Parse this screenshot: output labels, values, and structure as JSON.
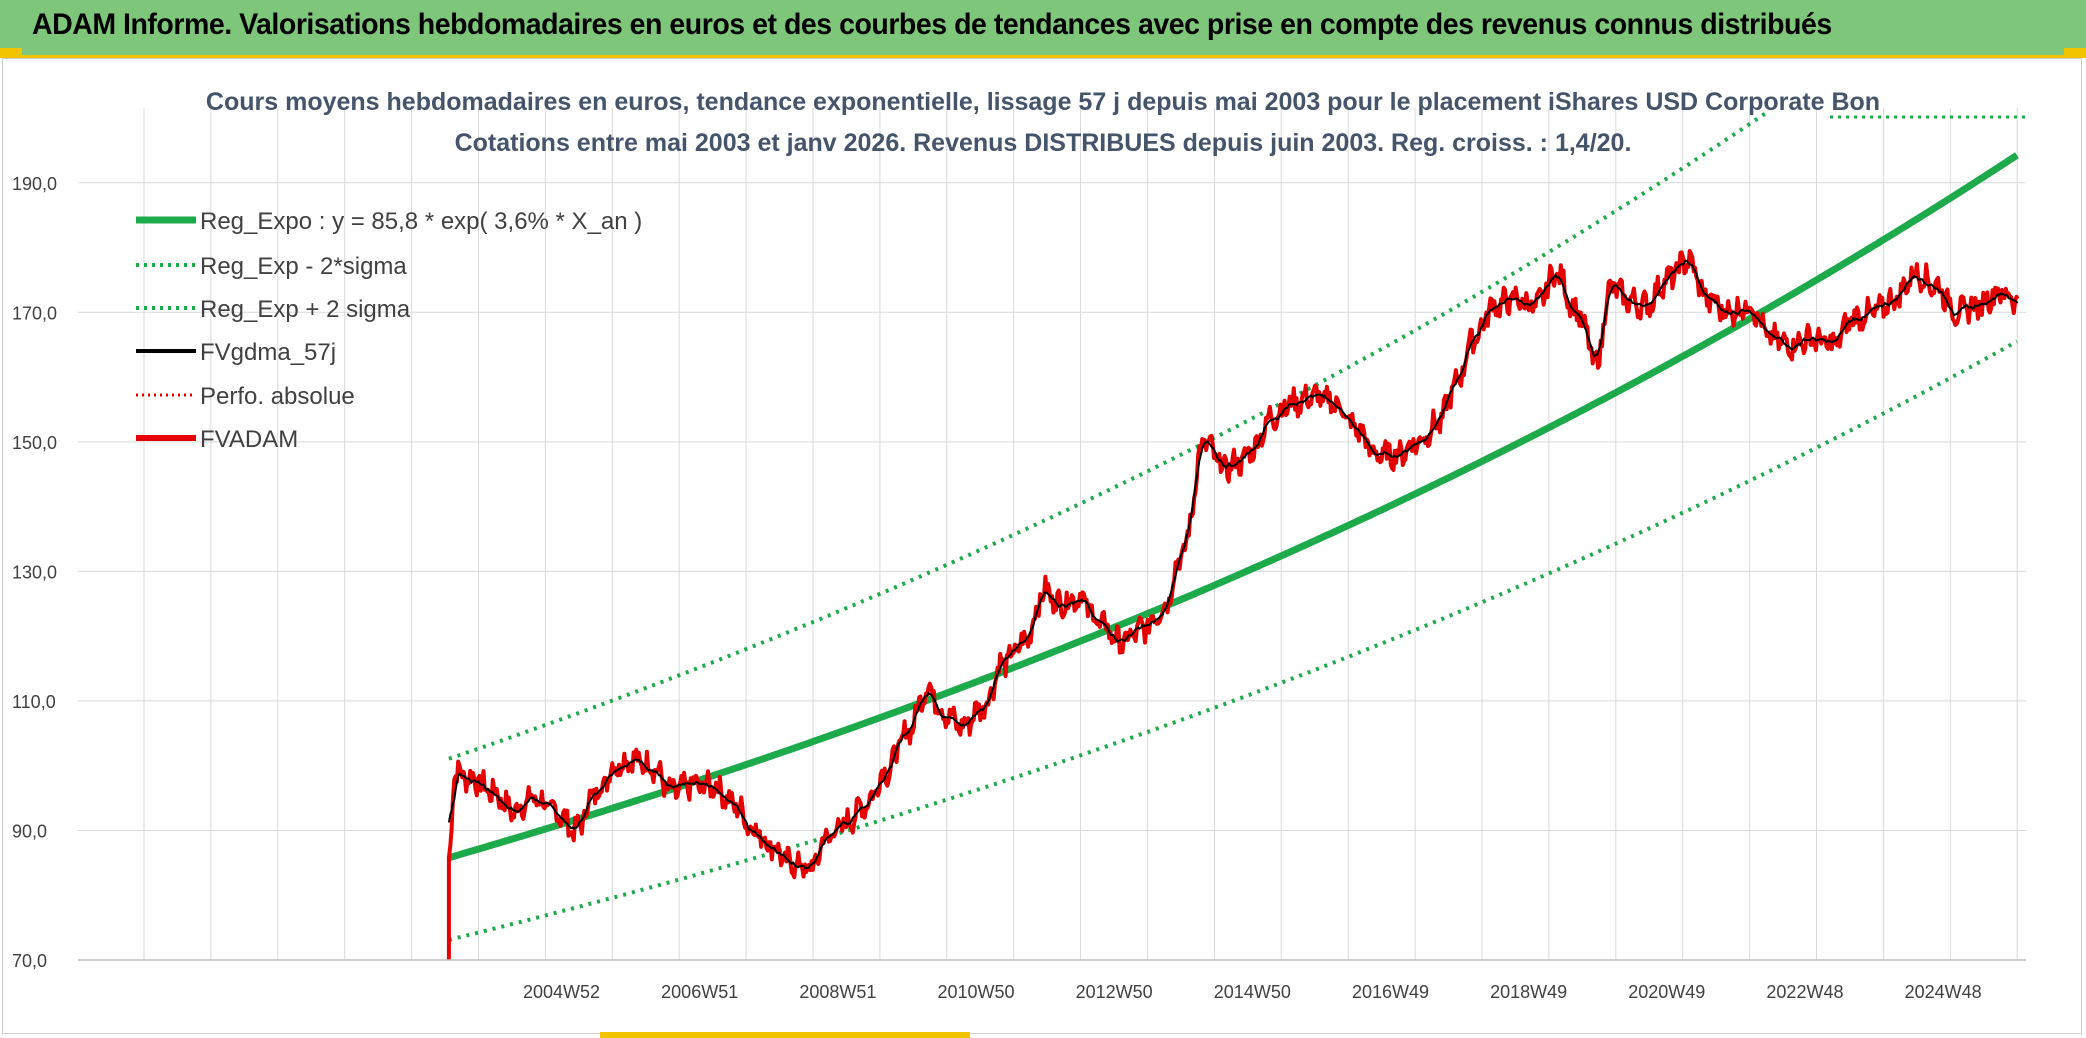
{
  "header": {
    "title": "ADAM Informe. Valorisations hebdomadaires en euros et des courbes de tendances avec prise en compte des revenus connus distribués"
  },
  "colors": {
    "header_bg": "#7dc67a",
    "accent_yellow": "#f2c400",
    "trend_green": "#1daa4a",
    "price_red": "#e60000",
    "smooth_black": "#000000",
    "grid": "#d9d9d9"
  },
  "chart_data": {
    "type": "line",
    "title": [
      "Cours moyens hebdomadaires en euros, tendance exponentielle, lissage 57 j depuis mai 2003 pour le placement iShares USD Corporate Bon",
      "Cotations entre mai 2003 et janv 2026. Revenus DISTRIBUES depuis juin 2003. Reg. croiss. : 1,4/20."
    ],
    "xlabel": "",
    "ylabel": "",
    "x_range": [
      1998.0,
      2026.2
    ],
    "ylim": [
      70,
      200
    ],
    "y_ticks": [
      70,
      90,
      110,
      130,
      150,
      170,
      190
    ],
    "y_tick_labels": [
      "70,0",
      "90,0",
      "110,0",
      "130,0",
      "150,0",
      "170,0",
      "190,0"
    ],
    "x_ticks": [
      2005.0,
      2007.0,
      2009.0,
      2011.0,
      2013.0,
      2015.0,
      2017.0,
      2019.0,
      2021.0,
      2023.0,
      2025.0
    ],
    "x_tick_labels": [
      "2004W52",
      "2006W51",
      "2008W51",
      "2010W50",
      "2012W50",
      "2014W50",
      "2016W49",
      "2018W49",
      "2020W49",
      "2022W48",
      "2024W48"
    ],
    "grid": true,
    "legend_position": "top-left",
    "regression": {
      "start_year": 2003.37,
      "end_year": 2026.1,
      "a": 85.8,
      "rate": 0.036,
      "sigma_factor_low": 0.852,
      "sigma_factor_high": 1.178
    },
    "price_anchors": {
      "x": [
        2003.37,
        2003.45,
        2003.7,
        2004.0,
        2004.3,
        2004.6,
        2004.9,
        2005.2,
        2005.5,
        2005.8,
        2006.0,
        2006.3,
        2006.6,
        2006.9,
        2007.2,
        2007.5,
        2007.8,
        2008.0,
        2008.3,
        2008.6,
        2008.85,
        2009.1,
        2009.4,
        2009.7,
        2010.0,
        2010.3,
        2010.55,
        2010.8,
        2011.1,
        2011.4,
        2011.7,
        2012.0,
        2012.2,
        2012.5,
        2012.8,
        2013.1,
        2013.4,
        2013.7,
        2014.0,
        2014.3,
        2014.6,
        2014.85,
        2015.0,
        2015.3,
        2015.6,
        2015.9,
        2016.2,
        2016.5,
        2016.8,
        2017.1,
        2017.4,
        2017.7,
        2017.95,
        2018.2,
        2018.5,
        2018.8,
        2019.1,
        2019.4,
        2019.7,
        2020.0,
        2020.15,
        2020.25,
        2020.4,
        2020.7,
        2021.0,
        2021.3,
        2021.6,
        2021.9,
        2022.2,
        2022.5,
        2022.8,
        2023.1,
        2023.4,
        2023.7,
        2024.0,
        2024.3,
        2024.6,
        2024.9,
        2025.2,
        2025.5,
        2025.8,
        2026.1
      ],
      "y": [
        85,
        99,
        98,
        96,
        93,
        95,
        93,
        90,
        96,
        100,
        101,
        100,
        96,
        97,
        97,
        94,
        90,
        88,
        85,
        84,
        89,
        91,
        94,
        99,
        105,
        112,
        108,
        106,
        109,
        116,
        119,
        127,
        125,
        126,
        122,
        119,
        121,
        124,
        133,
        150,
        146,
        147,
        149,
        154,
        156,
        157,
        156,
        152,
        148,
        148,
        150,
        153,
        159,
        166,
        171,
        172,
        171,
        176,
        170,
        162,
        173,
        174,
        172,
        171,
        175,
        178,
        172,
        170,
        171,
        166,
        165,
        166,
        165,
        169,
        170,
        172,
        176,
        174,
        170,
        171,
        173,
        172
      ]
    }
  },
  "legend": {
    "items": [
      "Reg_Expo : y = 85,8 * exp( 3,6% *  X_an )",
      "Reg_Exp - 2*sigma",
      "Reg_Exp + 2 sigma",
      "FVgdma_57j",
      "Perfo. absolue",
      "FVADAM"
    ]
  }
}
